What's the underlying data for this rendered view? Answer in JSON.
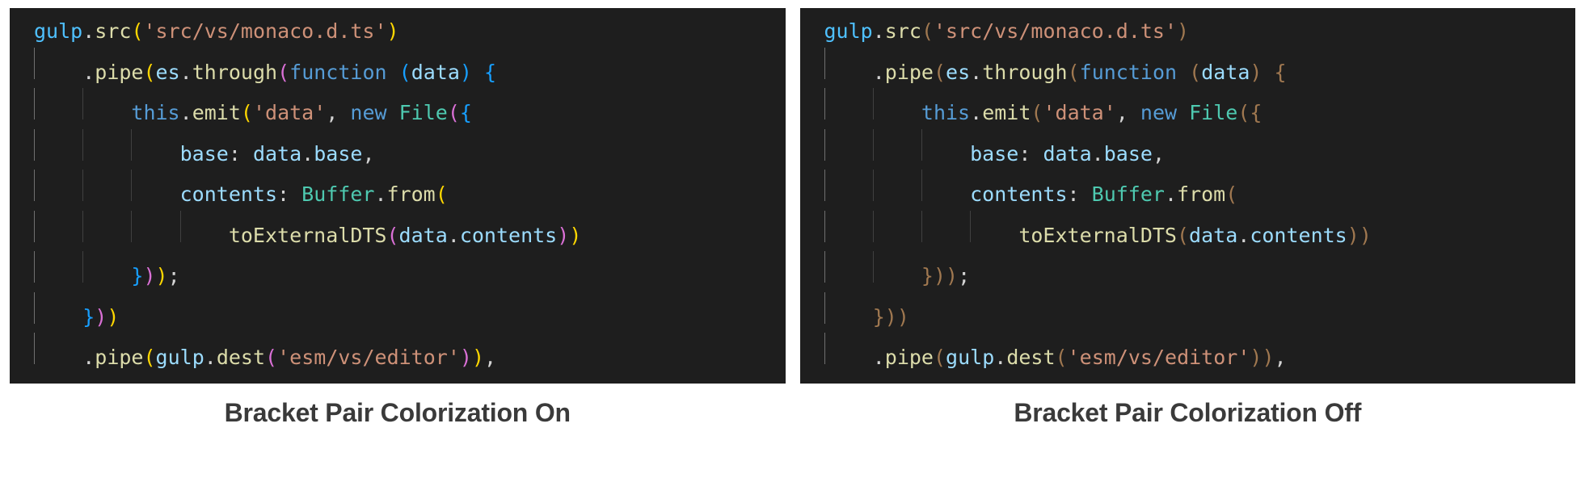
{
  "colors": {
    "editor_bg": "#1e1e1e",
    "fg": "#d4d4d4",
    "variable_blue": "#9cdcfe",
    "variable_cyan": "#4fc1ff",
    "keyword_blue": "#569cd6",
    "function_yellow": "#dcdcaa",
    "class_teal": "#4ec9b0",
    "string_orange": "#ce9178",
    "punct": "#d4d4d4",
    "bracket_yellow": "#ffd700",
    "bracket_pink": "#da70d6",
    "bracket_blue": "#179fff",
    "mono_bracket": "#a07850",
    "guide": "#404040",
    "guide_active": "#707070",
    "caption": "#3a3a3a"
  },
  "left_caption": "Bracket Pair Colorization On",
  "right_caption": "Bracket Pair Colorization Off",
  "code_lines": [
    {
      "indent": 0,
      "guides": 0,
      "tokens": [
        {
          "t": "gulp",
          "c": "variable_cyan"
        },
        {
          "t": ".",
          "c": "punct"
        },
        {
          "t": "src",
          "c": "function_yellow"
        },
        {
          "t": "(",
          "b": 0
        },
        {
          "t": "'src/vs/monaco.d.ts'",
          "c": "string_orange"
        },
        {
          "t": ")",
          "b": 0
        }
      ]
    },
    {
      "indent": 4,
      "guides": 1,
      "tokens": [
        {
          "t": ".",
          "c": "punct"
        },
        {
          "t": "pipe",
          "c": "function_yellow"
        },
        {
          "t": "(",
          "b": 0
        },
        {
          "t": "es",
          "c": "variable_blue"
        },
        {
          "t": ".",
          "c": "punct"
        },
        {
          "t": "through",
          "c": "function_yellow"
        },
        {
          "t": "(",
          "b": 1
        },
        {
          "t": "function",
          "c": "keyword_blue"
        },
        {
          "t": " ",
          "c": "punct"
        },
        {
          "t": "(",
          "b": 2
        },
        {
          "t": "data",
          "c": "variable_blue"
        },
        {
          "t": ")",
          "b": 2
        },
        {
          "t": " ",
          "c": "punct"
        },
        {
          "t": "{",
          "b": 2
        }
      ]
    },
    {
      "indent": 8,
      "guides": 2,
      "tokens": [
        {
          "t": "this",
          "c": "keyword_blue"
        },
        {
          "t": ".",
          "c": "punct"
        },
        {
          "t": "emit",
          "c": "function_yellow"
        },
        {
          "t": "(",
          "b": 0
        },
        {
          "t": "'data'",
          "c": "string_orange"
        },
        {
          "t": ", ",
          "c": "punct"
        },
        {
          "t": "new",
          "c": "keyword_blue"
        },
        {
          "t": " ",
          "c": "punct"
        },
        {
          "t": "File",
          "c": "class_teal"
        },
        {
          "t": "(",
          "b": 1
        },
        {
          "t": "{",
          "b": 2
        }
      ]
    },
    {
      "indent": 12,
      "guides": 3,
      "tokens": [
        {
          "t": "base",
          "c": "variable_blue"
        },
        {
          "t": ":",
          "c": "punct"
        },
        {
          "t": " ",
          "c": "punct"
        },
        {
          "t": "data",
          "c": "variable_blue"
        },
        {
          "t": ".",
          "c": "punct"
        },
        {
          "t": "base",
          "c": "variable_blue"
        },
        {
          "t": ",",
          "c": "punct"
        }
      ]
    },
    {
      "indent": 12,
      "guides": 3,
      "tokens": [
        {
          "t": "contents",
          "c": "variable_blue"
        },
        {
          "t": ":",
          "c": "punct"
        },
        {
          "t": " ",
          "c": "punct"
        },
        {
          "t": "Buffer",
          "c": "class_teal"
        },
        {
          "t": ".",
          "c": "punct"
        },
        {
          "t": "from",
          "c": "function_yellow"
        },
        {
          "t": "(",
          "b": 0
        }
      ]
    },
    {
      "indent": 16,
      "guides": 4,
      "tokens": [
        {
          "t": "toExternalDTS",
          "c": "function_yellow"
        },
        {
          "t": "(",
          "b": 1
        },
        {
          "t": "data",
          "c": "variable_blue"
        },
        {
          "t": ".",
          "c": "punct"
        },
        {
          "t": "contents",
          "c": "variable_blue"
        },
        {
          "t": ")",
          "b": 1
        },
        {
          "t": ")",
          "b": 0
        }
      ]
    },
    {
      "indent": 8,
      "guides": 2,
      "tokens": [
        {
          "t": "}",
          "b": 2
        },
        {
          "t": ")",
          "b": 1
        },
        {
          "t": ")",
          "b": 0
        },
        {
          "t": ";",
          "c": "punct"
        }
      ]
    },
    {
      "indent": 4,
      "guides": 1,
      "tokens": [
        {
          "t": "}",
          "b": 2
        },
        {
          "t": ")",
          "b": 1
        },
        {
          "t": ")",
          "b": 0
        }
      ]
    },
    {
      "indent": 4,
      "guides": 1,
      "tokens": [
        {
          "t": ".",
          "c": "punct"
        },
        {
          "t": "pipe",
          "c": "function_yellow"
        },
        {
          "t": "(",
          "b": 0
        },
        {
          "t": "gulp",
          "c": "variable_blue"
        },
        {
          "t": ".",
          "c": "punct"
        },
        {
          "t": "dest",
          "c": "function_yellow"
        },
        {
          "t": "(",
          "b": 1
        },
        {
          "t": "'esm/vs/editor'",
          "c": "string_orange"
        },
        {
          "t": ")",
          "b": 1
        },
        {
          "t": ")",
          "b": 0
        },
        {
          "t": ",",
          "c": "punct"
        }
      ]
    }
  ]
}
